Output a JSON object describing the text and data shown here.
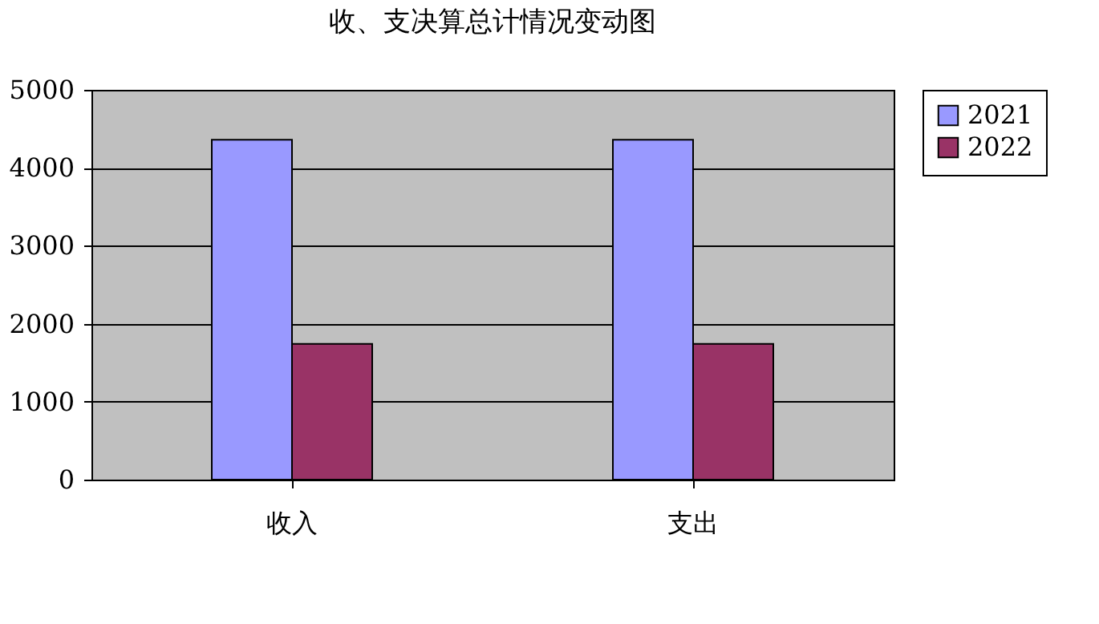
{
  "chart_data": {
    "type": "bar",
    "title": "收、支决算总计情况变动图",
    "categories": [
      "收入",
      "支出"
    ],
    "series": [
      {
        "name": "2021",
        "color": "#9999ff",
        "values": [
          4360,
          4360
        ]
      },
      {
        "name": "2022",
        "color": "#993366",
        "values": [
          1740,
          1740
        ]
      }
    ],
    "ylim": [
      0,
      5000
    ],
    "yticks": [
      0,
      1000,
      2000,
      3000,
      4000,
      5000
    ],
    "grid": "y",
    "legend": "right"
  }
}
